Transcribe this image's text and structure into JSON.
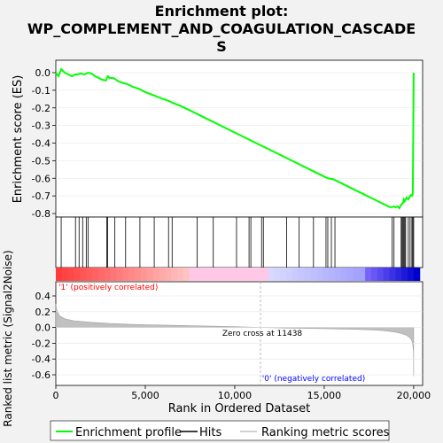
{
  "title_line1": "Enrichment plot:",
  "title_line2": "WP_COMPLEMENT_AND_COAGULATION_CASCADE",
  "title_line3": "S",
  "colors": {
    "es_line": "#00ff00",
    "hit": "#000000",
    "metric_fill": "#c0c0c0",
    "pos_label": "#ff0000",
    "neg_label": "#0000ff",
    "background": "#f2f2f2",
    "zero_line": "#aaaaaa"
  },
  "chart_data": [
    {
      "type": "line",
      "panel": "es",
      "ylabel": "Enrichment score (ES)",
      "ylim": [
        -0.8,
        0.05
      ],
      "yticks": [
        0.0,
        -0.1,
        -0.2,
        -0.3,
        -0.4,
        -0.5,
        -0.6,
        -0.7,
        -0.8
      ],
      "ytick_labels": [
        "0.0",
        "-0.1",
        "-0.2",
        "-0.3",
        "-0.4",
        "-0.5",
        "-0.6",
        "-0.7",
        "-0.8"
      ],
      "xlim": [
        0,
        20500
      ],
      "series": [
        {
          "name": "Enrichment profile",
          "x": [
            0,
            150,
            300,
            500,
            700,
            900,
            1100,
            1200,
            1400,
            1600,
            1800,
            2000,
            2200,
            2400,
            2600,
            2800,
            2900,
            3000,
            3200,
            3300,
            3500,
            3800,
            4000,
            4300,
            4600,
            5000,
            5500,
            6000,
            6300,
            6500,
            7000,
            7500,
            8000,
            8500,
            9000,
            9500,
            10000,
            10500,
            11000,
            11500,
            12000,
            12500,
            13000,
            13500,
            14000,
            14500,
            15000,
            15200,
            15500,
            15700,
            16000,
            16500,
            17000,
            17500,
            18000,
            18500,
            18700,
            18900,
            19000,
            19100,
            19200,
            19300,
            19400,
            19450,
            19500,
            19600,
            19700,
            19800,
            19850,
            19900,
            19950,
            19980,
            20000
          ],
          "y": [
            0.0,
            -0.02,
            0.02,
            0.0,
            -0.01,
            -0.02,
            -0.01,
            -0.01,
            -0.005,
            -0.01,
            0.0,
            -0.005,
            -0.02,
            -0.03,
            -0.04,
            -0.045,
            -0.02,
            -0.03,
            -0.03,
            -0.035,
            -0.05,
            -0.06,
            -0.065,
            -0.08,
            -0.09,
            -0.11,
            -0.13,
            -0.15,
            -0.16,
            -0.17,
            -0.19,
            -0.215,
            -0.24,
            -0.265,
            -0.29,
            -0.315,
            -0.34,
            -0.365,
            -0.39,
            -0.415,
            -0.44,
            -0.465,
            -0.49,
            -0.515,
            -0.54,
            -0.565,
            -0.59,
            -0.6,
            -0.605,
            -0.615,
            -0.63,
            -0.655,
            -0.68,
            -0.705,
            -0.73,
            -0.755,
            -0.765,
            -0.76,
            -0.765,
            -0.76,
            -0.77,
            -0.75,
            -0.74,
            -0.72,
            -0.73,
            -0.71,
            -0.72,
            -0.7,
            -0.695,
            -0.7,
            -0.69,
            -0.3,
            0.0
          ]
        }
      ]
    },
    {
      "type": "scatter",
      "panel": "hits",
      "series": [
        {
          "name": "Hits",
          "x": [
            300,
            1100,
            1300,
            1500,
            1700,
            1800,
            2850,
            2900,
            3300,
            3900,
            4700,
            5500,
            6300,
            6500,
            7900,
            8800,
            10100,
            10800,
            10900,
            11500,
            11600,
            12900,
            13600,
            14400,
            15100,
            15200,
            15400,
            15600,
            18800,
            18900,
            19300,
            19350,
            19400,
            19450,
            19500,
            19550,
            19700,
            19800,
            19900,
            19950,
            20000
          ]
        }
      ]
    },
    {
      "type": "area",
      "panel": "metric",
      "ylabel": "Ranked list metric (Signal2Noise)",
      "xlabel": "Rank in Ordered Dataset",
      "ylim": [
        -0.65,
        0.45
      ],
      "yticks": [
        0.4,
        0.2,
        0.0,
        -0.2,
        -0.4,
        -0.6
      ],
      "ytick_labels": [
        "0.4",
        "0.2",
        "0.0",
        "-0.2",
        "-0.4",
        "-0.6"
      ],
      "xlim": [
        0,
        20500
      ],
      "xticks": [
        0,
        5000,
        10000,
        15000,
        20000
      ],
      "xtick_labels": [
        "0",
        "5,000",
        "10,000",
        "15,000",
        "20,000"
      ],
      "x": [
        0,
        50,
        200,
        500,
        1000,
        2000,
        3000,
        4000,
        5000,
        6000,
        8000,
        10000,
        11438,
        13000,
        15000,
        16000,
        17000,
        18000,
        18500,
        19000,
        19300,
        19600,
        19800,
        19900,
        19950,
        19990,
        20000
      ],
      "values": [
        0.3,
        0.22,
        0.15,
        0.11,
        0.085,
        0.065,
        0.05,
        0.042,
        0.035,
        0.03,
        0.02,
        0.01,
        0.0,
        -0.008,
        -0.015,
        -0.02,
        -0.025,
        -0.035,
        -0.045,
        -0.06,
        -0.075,
        -0.1,
        -0.13,
        -0.17,
        -0.22,
        -0.3,
        -0.62
      ],
      "zero_cross_label": "Zero cross at 11438",
      "zero_cross_x": 11438,
      "pos_label": "'1' (positively correlated)",
      "neg_label": "'0' (negatively correlated)"
    }
  ],
  "legend": {
    "items": [
      {
        "label": "Enrichment profile",
        "color": "#00ff00"
      },
      {
        "label": "Hits",
        "color": "#000000"
      },
      {
        "label": "Ranking metric scores",
        "color": "#c0c0c0"
      }
    ]
  }
}
